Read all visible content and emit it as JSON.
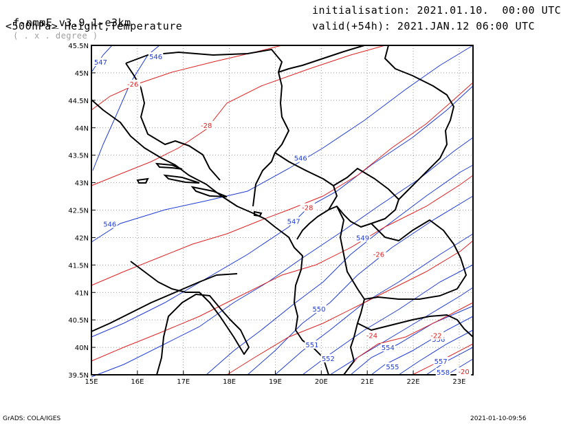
{
  "header": {
    "model_prefix": "f-nmmE_v3.9.1-e3km",
    "model_suffix": "( . x . degree )",
    "product": "<500hPa> Height,Temperature",
    "init": "initialisation: 2021.01.10.  00:00 UTC",
    "valid": "valid(+54h): 2021.JAN.12 06:00 UTC"
  },
  "footer": {
    "credit": "GrADS: COLA/IGES",
    "timestamp": "2021-01-10-09:56"
  },
  "colors": {
    "height": "#1c3ad8",
    "temperature": "#e02020",
    "border": "#000000",
    "grid": "#9a9a9a"
  },
  "chart_data": {
    "type": "contour-map",
    "xlim": [
      15,
      23.3
    ],
    "ylim": [
      39.5,
      45.5
    ],
    "x_ticks": [
      "15E",
      "16E",
      "17E",
      "18E",
      "19E",
      "20E",
      "21E",
      "22E",
      "23E"
    ],
    "y_ticks": [
      "39.5N",
      "40N",
      "40.5N",
      "41N",
      "41.5N",
      "42N",
      "42.5N",
      "43N",
      "43.5N",
      "44N",
      "44.5N",
      "45N",
      "45.5N"
    ],
    "grid": "dotted",
    "height_labels": [
      {
        "text": "547",
        "lon": 15.2,
        "lat": 45.2
      },
      {
        "text": "546",
        "lon": 16.4,
        "lat": 45.3
      },
      {
        "text": "546",
        "lon": 15.4,
        "lat": 42.25
      },
      {
        "text": "546",
        "lon": 19.55,
        "lat": 43.45
      },
      {
        "text": "547",
        "lon": 19.4,
        "lat": 42.3
      },
      {
        "text": "549",
        "lon": 20.9,
        "lat": 42.0
      },
      {
        "text": "550",
        "lon": 19.95,
        "lat": 40.7
      },
      {
        "text": "551",
        "lon": 19.8,
        "lat": 40.05
      },
      {
        "text": "552",
        "lon": 20.15,
        "lat": 39.8
      },
      {
        "text": "554",
        "lon": 21.45,
        "lat": 40.0
      },
      {
        "text": "555",
        "lon": 21.55,
        "lat": 39.65
      },
      {
        "text": "556",
        "lon": 22.55,
        "lat": 40.15
      },
      {
        "text": "557",
        "lon": 22.6,
        "lat": 39.75
      },
      {
        "text": "558",
        "lon": 22.65,
        "lat": 39.55
      }
    ],
    "temperature_labels": [
      {
        "text": "-26",
        "lon": 15.9,
        "lat": 44.8
      },
      {
        "text": "-28",
        "lon": 17.5,
        "lat": 44.05
      },
      {
        "text": "-28",
        "lon": 19.7,
        "lat": 42.55
      },
      {
        "text": "-26",
        "lon": 21.25,
        "lat": 41.7
      },
      {
        "text": "-24",
        "lon": 21.1,
        "lat": 40.22
      },
      {
        "text": "-22",
        "lon": 22.5,
        "lat": 40.22
      },
      {
        "text": "-20",
        "lon": 23.1,
        "lat": 39.56
      }
    ]
  }
}
